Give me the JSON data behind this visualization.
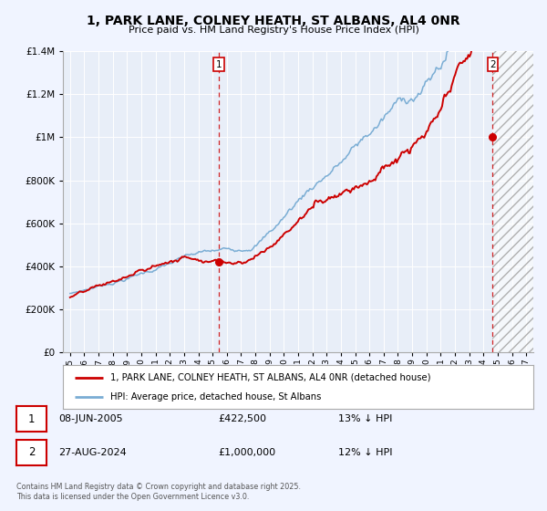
{
  "title_line1": "1, PARK LANE, COLNEY HEATH, ST ALBANS, AL4 0NR",
  "title_line2": "Price paid vs. HM Land Registry's House Price Index (HPI)",
  "background_color": "#f0f4ff",
  "plot_bg_color": "#e8eef8",
  "grid_color": "#cccccc",
  "red_line_color": "#cc0000",
  "blue_line_color": "#7aadd4",
  "marker1_x": 2005.44,
  "marker1_y": 422500,
  "marker2_x": 2024.65,
  "marker2_y": 1000000,
  "vline1_x": 2005.44,
  "vline2_x": 2024.65,
  "ylim": [
    0,
    1400000
  ],
  "xlim": [
    1994.5,
    2027.5
  ],
  "yticks": [
    0,
    200000,
    400000,
    600000,
    800000,
    1000000,
    1200000,
    1400000
  ],
  "xticks": [
    1995,
    1996,
    1997,
    1998,
    1999,
    2000,
    2001,
    2002,
    2003,
    2004,
    2005,
    2006,
    2007,
    2008,
    2009,
    2010,
    2011,
    2012,
    2013,
    2014,
    2015,
    2016,
    2017,
    2018,
    2019,
    2020,
    2021,
    2022,
    2023,
    2024,
    2025,
    2026,
    2027
  ],
  "legend_label_red": "1, PARK LANE, COLNEY HEATH, ST ALBANS, AL4 0NR (detached house)",
  "legend_label_blue": "HPI: Average price, detached house, St Albans",
  "annotation1_date": "08-JUN-2005",
  "annotation1_price": "£422,500",
  "annotation1_hpi": "13% ↓ HPI",
  "annotation2_date": "27-AUG-2024",
  "annotation2_price": "£1,000,000",
  "annotation2_hpi": "12% ↓ HPI",
  "footer": "Contains HM Land Registry data © Crown copyright and database right 2025.\nThis data is licensed under the Open Government Licence v3.0.",
  "hatch_start": 2024.65,
  "hatch_end": 2027.5
}
